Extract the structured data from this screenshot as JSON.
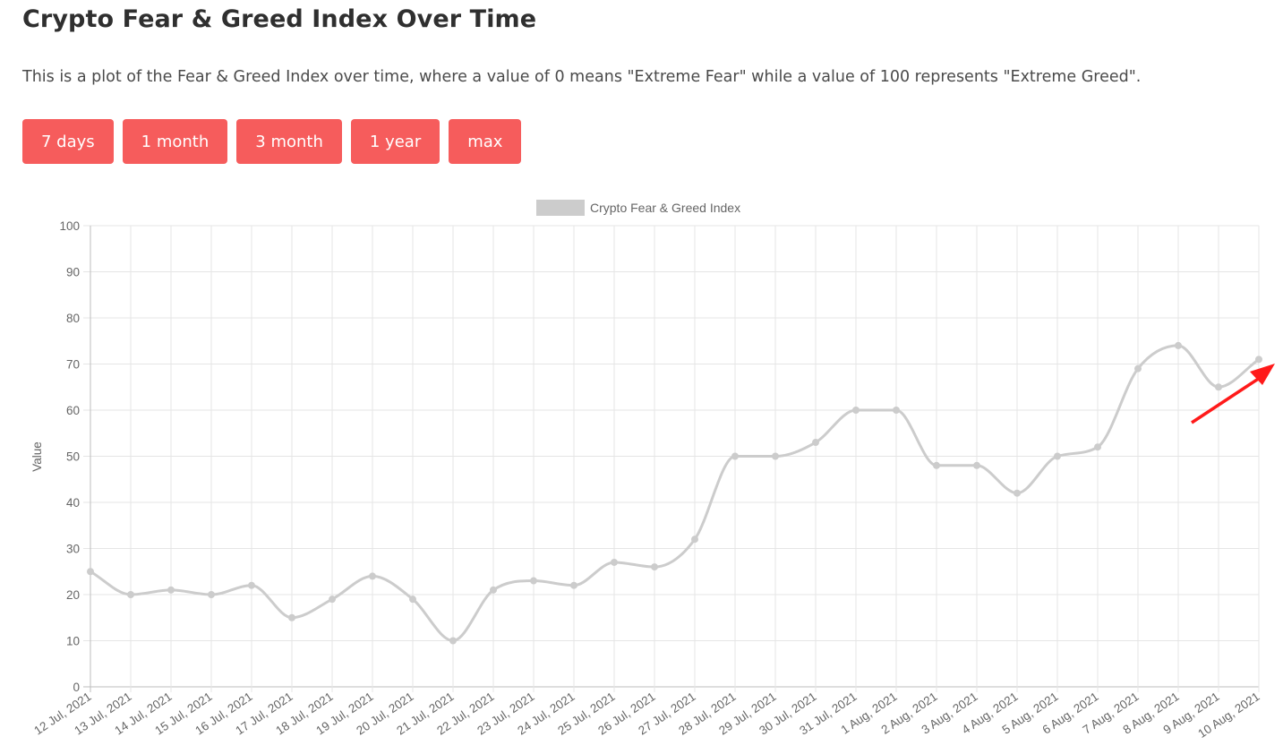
{
  "page": {
    "title": "Crypto Fear & Greed Index Over Time",
    "description": "This is a plot of the Fear & Greed Index over time, where a value of 0 means \"Extreme Fear\" while a value of 100 represents \"Extreme Greed\"."
  },
  "buttons": {
    "days7": "7 days",
    "month1": "1 month",
    "month3": "3 month",
    "year1": "1 year",
    "max": "max"
  },
  "colors": {
    "button": "#f65c5c",
    "series": "#cccccc",
    "arrow": "#ff1a1a",
    "grid": "#e5e5e5"
  },
  "chart_data": {
    "type": "line",
    "title": "",
    "xlabel": "",
    "ylabel": "Value",
    "ylim": [
      0,
      100
    ],
    "y_ticks": [
      0,
      10,
      20,
      30,
      40,
      50,
      60,
      70,
      80,
      90,
      100
    ],
    "grid": true,
    "legend": "top-center",
    "categories": [
      "12 Jul, 2021",
      "13 Jul, 2021",
      "14 Jul, 2021",
      "15 Jul, 2021",
      "16 Jul, 2021",
      "17 Jul, 2021",
      "18 Jul, 2021",
      "19 Jul, 2021",
      "20 Jul, 2021",
      "21 Jul, 2021",
      "22 Jul, 2021",
      "23 Jul, 2021",
      "24 Jul, 2021",
      "25 Jul, 2021",
      "26 Jul, 2021",
      "27 Jul, 2021",
      "28 Jul, 2021",
      "29 Jul, 2021",
      "30 Jul, 2021",
      "31 Jul, 2021",
      "1 Aug, 2021",
      "2 Aug, 2021",
      "3 Aug, 2021",
      "4 Aug, 2021",
      "5 Aug, 2021",
      "6 Aug, 2021",
      "7 Aug, 2021",
      "8 Aug, 2021",
      "9 Aug, 2021",
      "10 Aug, 2021"
    ],
    "series": [
      {
        "name": "Crypto Fear & Greed Index",
        "color": "#cccccc",
        "values": [
          25,
          20,
          21,
          20,
          22,
          15,
          19,
          24,
          19,
          10,
          21,
          23,
          22,
          27,
          26,
          32,
          50,
          50,
          53,
          60,
          60,
          48,
          48,
          42,
          50,
          52,
          69,
          74,
          65,
          71
        ]
      }
    ]
  }
}
